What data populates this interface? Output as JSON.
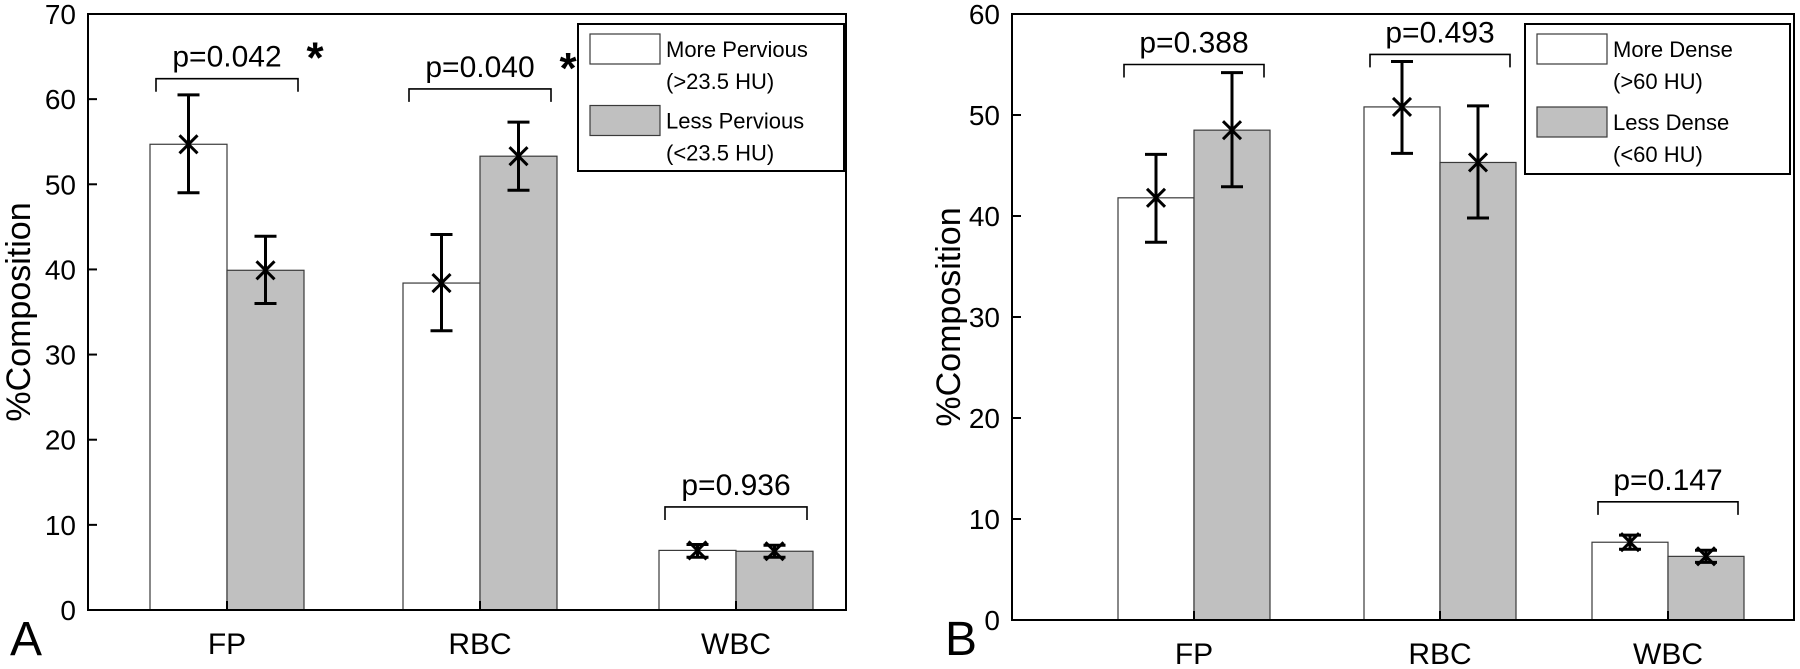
{
  "chart_data": [
    {
      "type": "bar",
      "panel_label": "A",
      "ylabel": "%Composition",
      "ylim": [
        0,
        70
      ],
      "yticks": [
        0,
        10,
        20,
        30,
        40,
        50,
        60,
        70
      ],
      "categories": [
        "FP",
        "RBC",
        "WBC"
      ],
      "series": [
        {
          "name": "More Pervious (>23.5 HU)",
          "legend_line1": "More Pervious",
          "legend_line2": "(>23.5 HU)",
          "color": "#ffffff",
          "values": [
            54.7,
            38.4,
            7.0
          ],
          "err_low": [
            49.0,
            32.8,
            6.2
          ],
          "err_high": [
            60.5,
            44.1,
            7.7
          ]
        },
        {
          "name": "Less Pervious (<23.5 HU)",
          "legend_line1": "Less Pervious",
          "legend_line2": "(<23.5 HU)",
          "color": "#c0c0c0",
          "values": [
            39.9,
            53.3,
            6.9
          ],
          "err_low": [
            36.0,
            49.3,
            6.2
          ],
          "err_high": [
            43.9,
            57.3,
            7.6
          ]
        }
      ],
      "annotations": [
        {
          "category": "FP",
          "text": "p=0.042",
          "star": "*",
          "bracket_y": 62.4
        },
        {
          "category": "RBC",
          "text": "p=0.040",
          "star": "*",
          "bracket_y": 61.2
        },
        {
          "category": "WBC",
          "text": "p=0.936",
          "star": "",
          "bracket_y": 12.1
        }
      ],
      "legend_position": "top-right",
      "grid": false
    },
    {
      "type": "bar",
      "panel_label": "B",
      "ylabel": "%Composition",
      "ylim": [
        0,
        60
      ],
      "yticks": [
        0,
        10,
        20,
        30,
        40,
        50,
        60
      ],
      "categories": [
        "FP",
        "RBC",
        "WBC"
      ],
      "series": [
        {
          "name": "More Dense (>60 HU)",
          "legend_line1": "More Dense",
          "legend_line2": "(>60 HU)",
          "color": "#ffffff",
          "values": [
            41.8,
            50.8,
            7.7
          ],
          "err_low": [
            37.4,
            46.2,
            7.0
          ],
          "err_high": [
            46.1,
            55.3,
            8.4
          ]
        },
        {
          "name": "Less Dense (<60 HU)",
          "legend_line1": "Less Dense",
          "legend_line2": "(<60 HU)",
          "color": "#c0c0c0",
          "values": [
            48.5,
            45.3,
            6.3
          ],
          "err_low": [
            42.9,
            39.8,
            5.7
          ],
          "err_high": [
            54.2,
            50.9,
            6.9
          ]
        }
      ],
      "annotations": [
        {
          "category": "FP",
          "text": "p=0.388",
          "star": "",
          "bracket_y": 55.0
        },
        {
          "category": "RBC",
          "text": "p=0.493",
          "star": "",
          "bracket_y": 56.0
        },
        {
          "category": "WBC",
          "text": "p=0.147",
          "star": "",
          "bracket_y": 11.7
        }
      ],
      "legend_position": "top-right",
      "grid": false
    }
  ]
}
